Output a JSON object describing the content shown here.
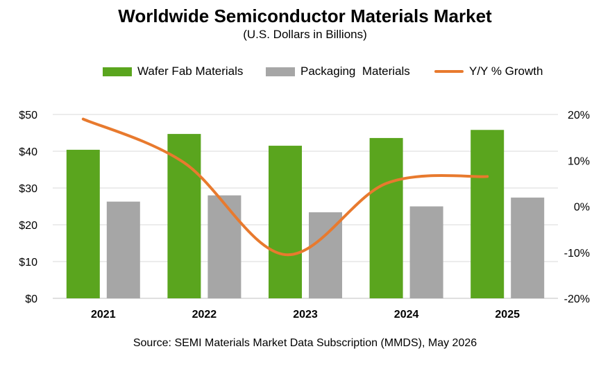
{
  "chart_data": {
    "type": "bar",
    "title": "Worldwide Semiconductor Materials Market",
    "subtitle": "(U.S. Dollars in Billions)",
    "categories": [
      "2021",
      "2022",
      "2023",
      "2024",
      "2025"
    ],
    "series": [
      {
        "name": "Wafer Fab Materials",
        "type": "bar",
        "axis": "left",
        "color": "#5aa51e",
        "values": [
          40.4,
          44.7,
          41.5,
          43.6,
          45.8
        ]
      },
      {
        "name": "Packaging  Materials",
        "type": "bar",
        "axis": "left",
        "color": "#a6a6a6",
        "values": [
          26.3,
          28.0,
          23.4,
          25.0,
          27.4
        ]
      },
      {
        "name": "Y/Y % Growth",
        "type": "line",
        "axis": "right",
        "color": "#e87a2e",
        "values": [
          19.0,
          9.5,
          -10.5,
          5.0,
          6.5
        ]
      }
    ],
    "ylim_left": [
      0,
      50
    ],
    "ylim_right": [
      -20,
      20
    ],
    "left_ticks": [
      "$0",
      "$10",
      "$20",
      "$30",
      "$40",
      "$50"
    ],
    "right_ticks": [
      "-20%",
      "-10%",
      "0%",
      "10%",
      "20%"
    ],
    "grid": true,
    "legend_position": "top",
    "source": "Source:  SEMI Materials Market Data Subscription (MMDS), May 2026"
  }
}
